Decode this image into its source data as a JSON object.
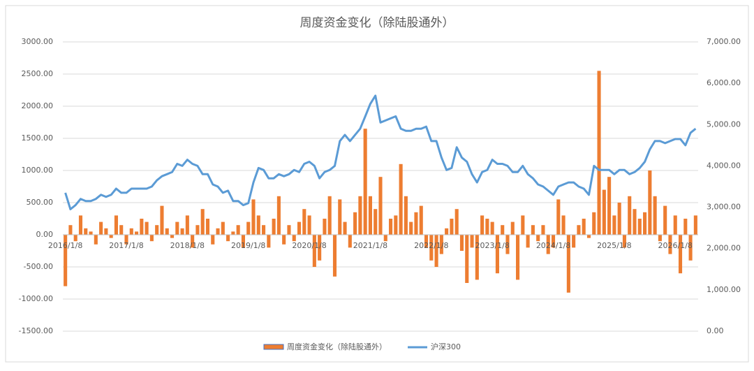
{
  "chart_data": {
    "type": "bar-line",
    "title": "周度资金变化（除陆股通外）",
    "categories": [
      "2016/1/8",
      null,
      null,
      null,
      null,
      null,
      null,
      null,
      null,
      null,
      null,
      null,
      "2017/1/8",
      null,
      null,
      null,
      null,
      null,
      null,
      null,
      null,
      null,
      null,
      null,
      "2018/1/8",
      null,
      null,
      null,
      null,
      null,
      null,
      null,
      null,
      null,
      null,
      null,
      "2019/1/8",
      null,
      null,
      null,
      null,
      null,
      null,
      null,
      null,
      null,
      null,
      null,
      "2020/1/8",
      null,
      null,
      null,
      null,
      null,
      null,
      null,
      null,
      null,
      null,
      null,
      "2021/1/8",
      null,
      null,
      null,
      null,
      null,
      null,
      null,
      null,
      null,
      null,
      null,
      "2022/1/8",
      null,
      null,
      null,
      null,
      null,
      null,
      null,
      null,
      null,
      null,
      null,
      "2023/1/8",
      null,
      null,
      null,
      null,
      null,
      null,
      null,
      null,
      null,
      null,
      null,
      "2024/1/8",
      null,
      null,
      null,
      null,
      null,
      null,
      null,
      null,
      null,
      null,
      null,
      "2025/1/8",
      null,
      null,
      null,
      null,
      null,
      null,
      null,
      null,
      null,
      null,
      null,
      "2026/1/8",
      null,
      null,
      null,
      null
    ],
    "series": [
      {
        "name": "周度资金变化（除陆股通外）",
        "color": "#ed7d31",
        "type": "bar",
        "values": [
          -800,
          150,
          -100,
          300,
          100,
          50,
          -150,
          200,
          100,
          -50,
          300,
          150,
          -150,
          100,
          50,
          250,
          200,
          -100,
          150,
          450,
          100,
          -50,
          200,
          100,
          300,
          -200,
          150,
          400,
          250,
          -150,
          100,
          200,
          -100,
          50,
          150,
          -200,
          200,
          550,
          300,
          150,
          -200,
          250,
          600,
          -150,
          150,
          -100,
          200,
          400,
          300,
          -500,
          -400,
          250,
          600,
          -650,
          550,
          200,
          -200,
          350,
          600,
          1650,
          600,
          400,
          900,
          -100,
          250,
          300,
          1100,
          600,
          200,
          350,
          450,
          -200,
          -400,
          -500,
          -300,
          100,
          250,
          400,
          -250,
          -750,
          -200,
          -700,
          300,
          250,
          200,
          -600,
          150,
          -300,
          200,
          -700,
          300,
          -200,
          150,
          -100,
          150,
          -300,
          -200,
          550,
          300,
          -900,
          -200,
          150,
          250,
          -50,
          350,
          2550,
          700,
          900,
          300,
          500,
          -200,
          600,
          400,
          250,
          350,
          1000,
          600,
          -100,
          450,
          -300,
          300,
          -600,
          250,
          -400,
          300
        ]
      },
      {
        "name": "沪深300",
        "color": "#5b9bd5",
        "type": "line",
        "axis": "y2",
        "values": [
          3350,
          2950,
          3050,
          3200,
          3150,
          3150,
          3200,
          3300,
          3250,
          3300,
          3450,
          3350,
          3350,
          3450,
          3450,
          3450,
          3450,
          3500,
          3650,
          3750,
          3800,
          3850,
          4050,
          4000,
          4150,
          4050,
          4000,
          3800,
          3800,
          3550,
          3500,
          3350,
          3400,
          3150,
          3150,
          3050,
          3100,
          3600,
          3950,
          3900,
          3700,
          3700,
          3800,
          3750,
          3800,
          3900,
          3850,
          4050,
          4100,
          4000,
          3700,
          3850,
          3900,
          4000,
          4600,
          4750,
          4600,
          4750,
          4900,
          5200,
          5500,
          5700,
          5050,
          5100,
          5150,
          5200,
          4900,
          4850,
          4850,
          4900,
          4900,
          4950,
          4600,
          4600,
          4200,
          3900,
          3950,
          4450,
          4200,
          4100,
          3800,
          3600,
          3850,
          3900,
          4150,
          4050,
          4050,
          4000,
          3850,
          3850,
          4000,
          3800,
          3700,
          3550,
          3500,
          3400,
          3300,
          3500,
          3550,
          3600,
          3600,
          3500,
          3450,
          3300,
          4000,
          3900,
          3900,
          3900,
          3800,
          3900,
          3900,
          3800,
          3850,
          3950,
          4100,
          4400,
          4600,
          4600,
          4550,
          4600,
          4650,
          4650,
          4500,
          4800,
          4900
        ]
      }
    ],
    "ylim": [
      -1500,
      3000
    ],
    "yticks": [
      {
        "value": -1500,
        "label": "-1500.00"
      },
      {
        "value": -1000,
        "label": "-1000.00"
      },
      {
        "value": -500,
        "label": "-500.00"
      },
      {
        "value": 0,
        "label": "0.00"
      },
      {
        "value": 500,
        "label": "500.00"
      },
      {
        "value": 1000,
        "label": "1000.00"
      },
      {
        "value": 1500,
        "label": "1500.00"
      },
      {
        "value": 2000,
        "label": "2000.00"
      },
      {
        "value": 2500,
        "label": "2500.00"
      },
      {
        "value": 3000,
        "label": "3000.00"
      }
    ],
    "y2lim": [
      0,
      7000
    ],
    "y2ticks": [
      {
        "value": 0,
        "label": "0.00"
      },
      {
        "value": 1000,
        "label": "1,000.00"
      },
      {
        "value": 2000,
        "label": "2,000.00"
      },
      {
        "value": 3000,
        "label": "3,000.00"
      },
      {
        "value": 4000,
        "label": "4,000.00"
      },
      {
        "value": 5000,
        "label": "5,000.00"
      },
      {
        "value": 6000,
        "label": "6,000.00"
      },
      {
        "value": 7000,
        "label": "7,000.00"
      }
    ],
    "grid": true,
    "legend": "bottom"
  }
}
